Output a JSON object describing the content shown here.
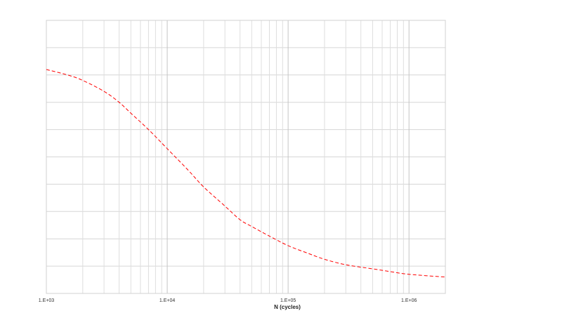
{
  "chart_data": {
    "type": "line",
    "title": "",
    "xlabel": "N (cycles)",
    "ylabel": "",
    "x_scale": "log",
    "xlim": [
      1000,
      2000000
    ],
    "ylim": [
      0,
      1
    ],
    "x_ticks": [
      {
        "value": 1000,
        "label": "1.E+03"
      },
      {
        "value": 10000,
        "label": "1.E+04"
      },
      {
        "value": 100000,
        "label": "1.E+05"
      },
      {
        "value": 1000000,
        "label": "1.E+06"
      }
    ],
    "y_ticks_labeled": false,
    "grid": true,
    "legend": "none",
    "series": [
      {
        "color": "#ff0000",
        "dash": "dashed",
        "x": [
          1000,
          1500,
          2000,
          3000,
          4000,
          5000,
          7000,
          10000,
          15000,
          20000,
          30000,
          40000,
          50000,
          70000,
          100000,
          150000,
          200000,
          300000,
          500000,
          700000,
          1000000,
          2000000
        ],
        "y": [
          0.82,
          0.8,
          0.78,
          0.74,
          0.7,
          0.66,
          0.6,
          0.53,
          0.45,
          0.39,
          0.32,
          0.27,
          0.245,
          0.21,
          0.175,
          0.145,
          0.125,
          0.105,
          0.09,
          0.08,
          0.07,
          0.06
        ]
      }
    ]
  }
}
